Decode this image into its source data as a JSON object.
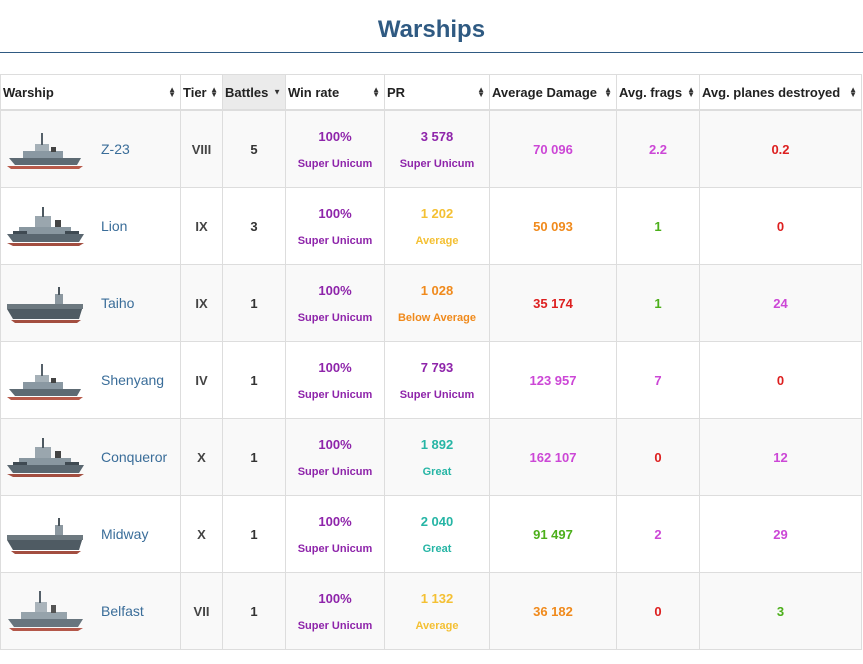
{
  "title": "Warships",
  "colors": {
    "super_unicum": "#8e24aa",
    "unicum": "#cc47d6",
    "great": "#26b5a5",
    "good": "#4caf1a",
    "average": "#f4c033",
    "below_average": "#f08a1c",
    "bad": "#dd1f1f",
    "link": "#3a6d99"
  },
  "columns": [
    {
      "label": "Warship",
      "sorted": false
    },
    {
      "label": "Tier",
      "sorted": false
    },
    {
      "label": "Battles",
      "sorted": true
    },
    {
      "label": "Win rate",
      "sorted": false
    },
    {
      "label": "PR",
      "sorted": false
    },
    {
      "label": "Average Damage",
      "sorted": false
    },
    {
      "label": "Avg. frags",
      "sorted": false
    },
    {
      "label": "Avg. planes destroyed",
      "sorted": false
    }
  ],
  "rows": [
    {
      "name": "Z-23",
      "ship_icon": "destroyer-ship-icon",
      "tier": "VIII",
      "battles": "5",
      "winrate": "100%",
      "winrate_label": "Super Unicum",
      "winrate_color": "super_unicum",
      "pr": "3 578",
      "pr_label": "Super Unicum",
      "pr_color": "super_unicum",
      "damage": "70 096",
      "damage_color": "unicum",
      "frags": "2.2",
      "frags_color": "unicum",
      "planes": "0.2",
      "planes_color": "bad"
    },
    {
      "name": "Lion",
      "ship_icon": "battleship-icon",
      "tier": "IX",
      "battles": "3",
      "winrate": "100%",
      "winrate_label": "Super Unicum",
      "winrate_color": "super_unicum",
      "pr": "1 202",
      "pr_label": "Average",
      "pr_color": "average",
      "damage": "50 093",
      "damage_color": "below_average",
      "frags": "1",
      "frags_color": "good",
      "planes": "0",
      "planes_color": "bad"
    },
    {
      "name": "Taiho",
      "ship_icon": "carrier-ship-icon",
      "tier": "IX",
      "battles": "1",
      "winrate": "100%",
      "winrate_label": "Super Unicum",
      "winrate_color": "super_unicum",
      "pr": "1 028",
      "pr_label": "Below Average",
      "pr_color": "below_average",
      "damage": "35 174",
      "damage_color": "bad",
      "frags": "1",
      "frags_color": "good",
      "planes": "24",
      "planes_color": "unicum"
    },
    {
      "name": "Shenyang",
      "ship_icon": "destroyer-ship-icon",
      "tier": "IV",
      "battles": "1",
      "winrate": "100%",
      "winrate_label": "Super Unicum",
      "winrate_color": "super_unicum",
      "pr": "7 793",
      "pr_label": "Super Unicum",
      "pr_color": "super_unicum",
      "damage": "123 957",
      "damage_color": "unicum",
      "frags": "7",
      "frags_color": "unicum",
      "planes": "0",
      "planes_color": "bad"
    },
    {
      "name": "Conqueror",
      "ship_icon": "battleship-icon",
      "tier": "X",
      "battles": "1",
      "winrate": "100%",
      "winrate_label": "Super Unicum",
      "winrate_color": "super_unicum",
      "pr": "1 892",
      "pr_label": "Great",
      "pr_color": "great",
      "damage": "162 107",
      "damage_color": "unicum",
      "frags": "0",
      "frags_color": "bad",
      "planes": "12",
      "planes_color": "unicum"
    },
    {
      "name": "Midway",
      "ship_icon": "carrier-ship-icon",
      "tier": "X",
      "battles": "1",
      "winrate": "100%",
      "winrate_label": "Super Unicum",
      "winrate_color": "super_unicum",
      "pr": "2 040",
      "pr_label": "Great",
      "pr_color": "great",
      "damage": "91 497",
      "damage_color": "good",
      "frags": "2",
      "frags_color": "unicum",
      "planes": "29",
      "planes_color": "unicum"
    },
    {
      "name": "Belfast",
      "ship_icon": "cruiser-ship-icon",
      "tier": "VII",
      "battles": "1",
      "winrate": "100%",
      "winrate_label": "Super Unicum",
      "winrate_color": "super_unicum",
      "pr": "1 132",
      "pr_label": "Average",
      "pr_color": "average",
      "damage": "36 182",
      "damage_color": "below_average",
      "frags": "0",
      "frags_color": "bad",
      "planes": "3",
      "planes_color": "good"
    }
  ]
}
